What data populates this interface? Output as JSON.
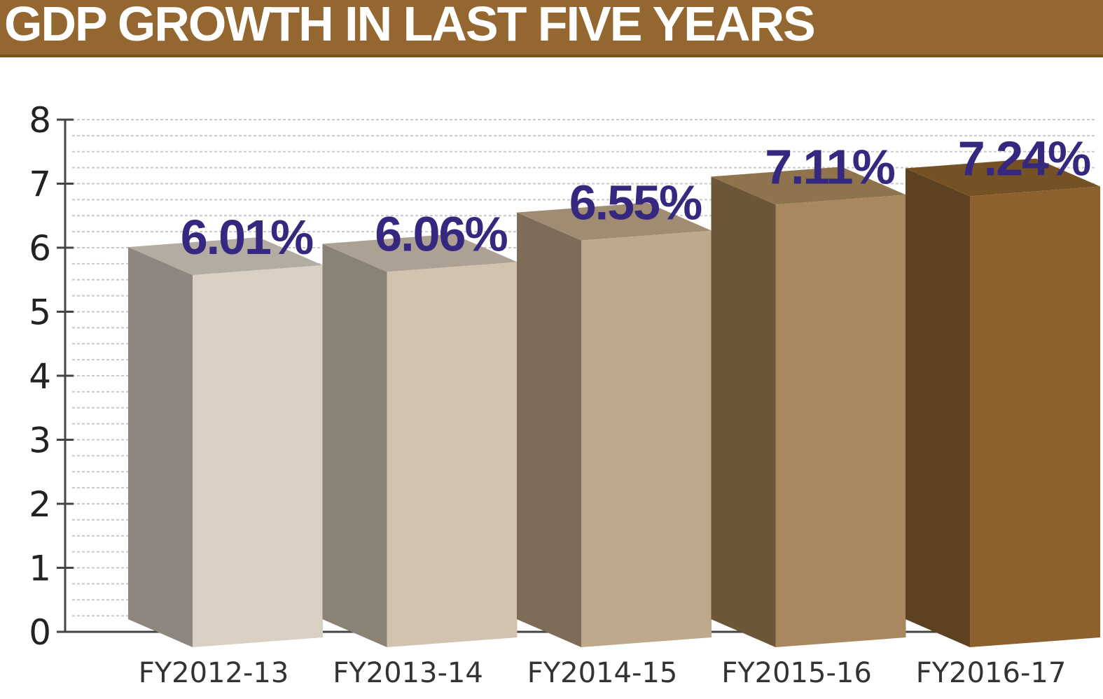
{
  "title": "GDP GROWTH IN LAST FIVE YEARS",
  "colors": {
    "title_bar": "#956730",
    "data_label": "#35287e",
    "bar_fronts": [
      "#d9cfc2",
      "#d1c3b0",
      "#bfa98c",
      "#a9875f",
      "#8c612e"
    ],
    "bar_sides": [
      "#8d8780",
      "#8b8276",
      "#7c6c58",
      "#6c5638",
      "#5c4220"
    ],
    "bar_tops": [
      "#b3aca2",
      "#aca192",
      "#9f8c72",
      "#8f734c",
      "#755226"
    ]
  },
  "chart_data": {
    "type": "bar",
    "title": "GDP GROWTH IN LAST FIVE YEARS",
    "categories": [
      "FY2012-13",
      "FY2013-14",
      "FY2014-15",
      "FY2015-16",
      "FY2016-17"
    ],
    "values": [
      6.01,
      6.06,
      6.55,
      7.11,
      7.24
    ],
    "data_labels": [
      "6.01%",
      "6.06%",
      "6.55%",
      "7.11%",
      "7.24%"
    ],
    "yticks": [
      "0",
      "1",
      "2",
      "3",
      "4",
      "5",
      "6",
      "7",
      "8"
    ],
    "ylim": [
      0,
      8
    ],
    "xlabel": "",
    "ylabel": "",
    "grid": true,
    "style": "3d-bar"
  }
}
